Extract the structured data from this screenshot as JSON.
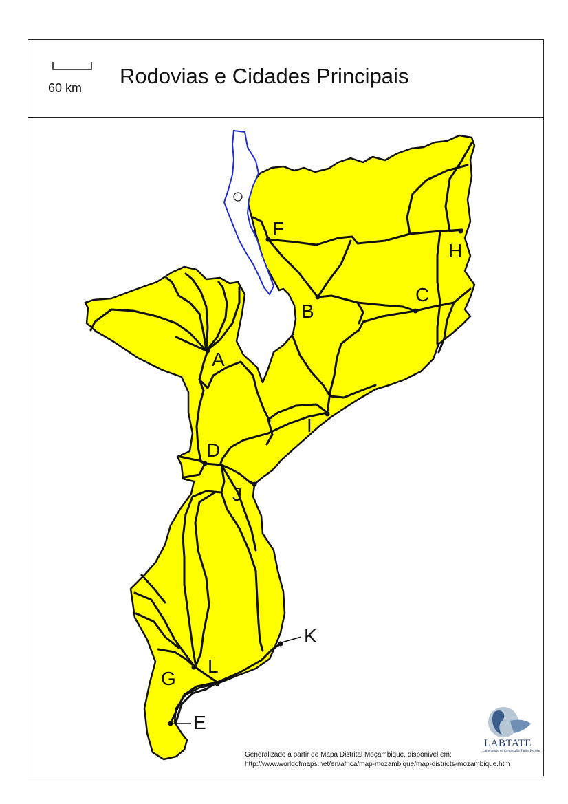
{
  "title": "Rodovias e Cidades Principais",
  "scale": {
    "label": "60 km"
  },
  "cities": [
    {
      "id": "A",
      "label": "A"
    },
    {
      "id": "B",
      "label": "B"
    },
    {
      "id": "C",
      "label": "C"
    },
    {
      "id": "D",
      "label": "D"
    },
    {
      "id": "E",
      "label": "E"
    },
    {
      "id": "F",
      "label": "F"
    },
    {
      "id": "G",
      "label": "G"
    },
    {
      "id": "H",
      "label": "H"
    },
    {
      "id": "I",
      "label": "I"
    },
    {
      "id": "J",
      "label": "J"
    },
    {
      "id": "K",
      "label": "K"
    },
    {
      "id": "L",
      "label": "L"
    }
  ],
  "credit": {
    "line1": "Generalizado a partir de Mapa Distrital Moçambique, disponivel em:",
    "line2": "http://www.worldofmaps.net/en/africa/map-mozambique/map-districts-mozambique.htm"
  },
  "logo": {
    "name": "LABTATE",
    "subtitle": "Laboratório de Cartografia Tátil e Escolar"
  },
  "colors": {
    "land": "#ffff00",
    "border": "#111111",
    "lake": "#1f2bd6",
    "roads": "#111111"
  },
  "icons": [
    "scale-bar-icon",
    "lake-island-icon",
    "city-dot-icon",
    "globe-logo-icon"
  ]
}
